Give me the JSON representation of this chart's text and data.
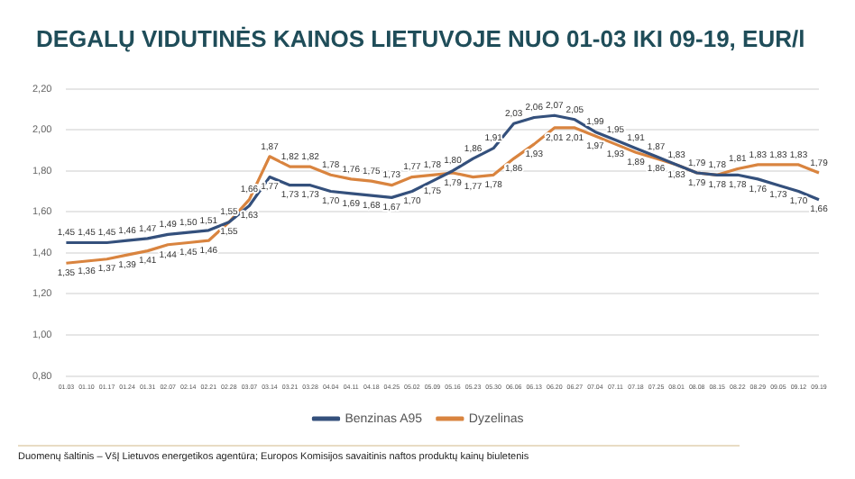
{
  "chart_data": {
    "type": "line",
    "title": "DEGALŲ VIDUTINĖS KAINOS LIETUVOJE NUO 01-03 IKI 09-19, EUR/l",
    "categories": [
      "01.03",
      "01.10",
      "01.17",
      "01.24",
      "01.31",
      "02.07",
      "02.14",
      "02.21",
      "02.28",
      "03.07",
      "03.14",
      "03.21",
      "03.28",
      "04.04",
      "04.11",
      "04.18",
      "04.25",
      "05.02",
      "05.09",
      "05.16",
      "05.23",
      "05.30",
      "06.06",
      "06.13",
      "06.20",
      "06.27",
      "07.04",
      "07.11",
      "07.18",
      "07.25",
      "08.01",
      "08.08",
      "08.15",
      "08.22",
      "08.29",
      "09.05",
      "09.12",
      "09.19"
    ],
    "series": [
      {
        "name": "Benzinas A95",
        "color": "#34507c",
        "values": [
          1.45,
          1.45,
          1.45,
          1.46,
          1.47,
          1.49,
          1.5,
          1.51,
          1.55,
          1.63,
          1.77,
          1.73,
          1.73,
          1.7,
          1.69,
          1.68,
          1.67,
          1.7,
          1.75,
          1.8,
          1.86,
          1.91,
          2.03,
          2.06,
          2.07,
          2.05,
          1.99,
          1.95,
          1.91,
          1.87,
          1.83,
          1.79,
          1.78,
          1.78,
          1.76,
          1.73,
          1.7,
          1.66
        ],
        "value_labels": [
          "1,45",
          "1,45",
          "1,45",
          "1,46",
          "1,47",
          "1,49",
          "1,50",
          "1,51",
          "1,55",
          "1,63",
          "1,77",
          "1,73",
          "1,73",
          "1,70",
          "1,69",
          "1,68",
          "1,67",
          "1,70",
          "1,75",
          "1,80",
          "1,86",
          "1,91",
          "2,03",
          "2,06",
          "2,07",
          "2,05",
          "1,99",
          "1,95",
          "1,91",
          "1,87",
          "1,83",
          "1,79",
          "1,78",
          "1,78",
          "1,76",
          "1,73",
          "1,70",
          "1,66"
        ]
      },
      {
        "name": "Dyzelinas",
        "color": "#d9843f",
        "values": [
          1.35,
          1.36,
          1.37,
          1.39,
          1.41,
          1.44,
          1.45,
          1.46,
          1.55,
          1.66,
          1.87,
          1.82,
          1.82,
          1.78,
          1.76,
          1.75,
          1.73,
          1.77,
          1.78,
          1.79,
          1.77,
          1.78,
          1.86,
          1.93,
          2.01,
          2.01,
          1.97,
          1.93,
          1.89,
          1.86,
          1.83,
          1.79,
          1.78,
          1.81,
          1.83,
          1.83,
          1.83,
          1.79
        ],
        "value_labels": [
          "1,35",
          "1,36",
          "1,37",
          "1,39",
          "1,41",
          "1,44",
          "1,45",
          "1,46",
          "1,55",
          "1,66",
          "1,87",
          "1,82",
          "1,82",
          "1,78",
          "1,76",
          "1,75",
          "1,73",
          "1,77",
          "1,78",
          "1,79",
          "1,77",
          "1,78",
          "1,86",
          "1,93",
          "2,01",
          "2,01",
          "1,97",
          "1,93",
          "1,89",
          "1,86",
          "1,83",
          "1,79",
          "1,78",
          "1,81",
          "1,83",
          "1,83",
          "1,83",
          "1,79"
        ]
      }
    ],
    "ylim": [
      0.8,
      2.2
    ],
    "yticks": [
      {
        "value": 0.8,
        "label": "0,80"
      },
      {
        "value": 1.0,
        "label": "1,00"
      },
      {
        "value": 1.2,
        "label": "1,20"
      },
      {
        "value": 1.4,
        "label": "1,40"
      },
      {
        "value": 1.6,
        "label": "1,60"
      },
      {
        "value": 1.8,
        "label": "1,80"
      },
      {
        "value": 2.0,
        "label": "2,00"
      },
      {
        "value": 2.2,
        "label": "2,20"
      }
    ],
    "grid": "y",
    "legend": "bottom",
    "marker": "none",
    "annotations": [
      "Duomenų šaltinis – VšĮ Lietuvos energetikos agentūra; Europos Komisijos savaitinis naftos produktų kainų biuletenis"
    ]
  }
}
